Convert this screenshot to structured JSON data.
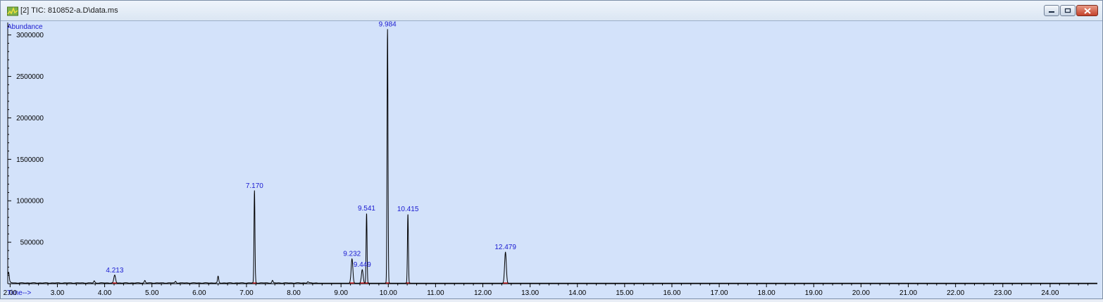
{
  "window": {
    "title": "[2] TIC: 810852-a.D\\data.ms",
    "icon": "chromatogram-app-icon",
    "buttons": [
      "minimize",
      "maximize",
      "close"
    ]
  },
  "chart_data": {
    "type": "line",
    "ylabel": "Abundance",
    "xlabel": "Time-->",
    "xlim": [
      1.95,
      25.0
    ],
    "ylim": [
      0,
      3150000
    ],
    "x_ticks": [
      "2.00",
      "3.00",
      "4.00",
      "5.00",
      "6.00",
      "7.00",
      "8.00",
      "9.00",
      "10.00",
      "11.00",
      "12.00",
      "13.00",
      "14.00",
      "15.00",
      "16.00",
      "17.00",
      "18.00",
      "19.00",
      "20.00",
      "21.00",
      "22.00",
      "23.00",
      "24.00"
    ],
    "y_ticks": [
      "500000",
      "1000000",
      "1500000",
      "2000000",
      "2500000",
      "3000000"
    ],
    "grid": false,
    "colors": {
      "background": "#d3e2fa",
      "trace": "#000000",
      "peak_label": "#1a1ad0",
      "baseline_mark": "#d02020"
    },
    "peaks": [
      {
        "label": "4.213",
        "time": 4.213,
        "abundance": 100000
      },
      {
        "label": "7.170",
        "time": 7.17,
        "abundance": 1120000
      },
      {
        "label": "9.232",
        "time": 9.232,
        "abundance": 300000
      },
      {
        "label": "9.449",
        "time": 9.449,
        "abundance": 170000
      },
      {
        "label": "9.541",
        "time": 9.541,
        "abundance": 850000
      },
      {
        "label": "9.984",
        "time": 9.984,
        "abundance": 3070000
      },
      {
        "label": "10.415",
        "time": 10.415,
        "abundance": 840000
      },
      {
        "label": "12.479",
        "time": 12.479,
        "abundance": 380000
      }
    ],
    "minor_features": [
      {
        "time": 1.97,
        "abundance": 90000
      },
      {
        "time": 3.78,
        "abundance": 25000
      },
      {
        "time": 4.85,
        "abundance": 30000
      },
      {
        "time": 5.5,
        "abundance": 20000
      },
      {
        "time": 6.4,
        "abundance": 80000
      },
      {
        "time": 7.55,
        "abundance": 30000
      },
      {
        "time": 8.3,
        "abundance": 15000
      }
    ]
  }
}
